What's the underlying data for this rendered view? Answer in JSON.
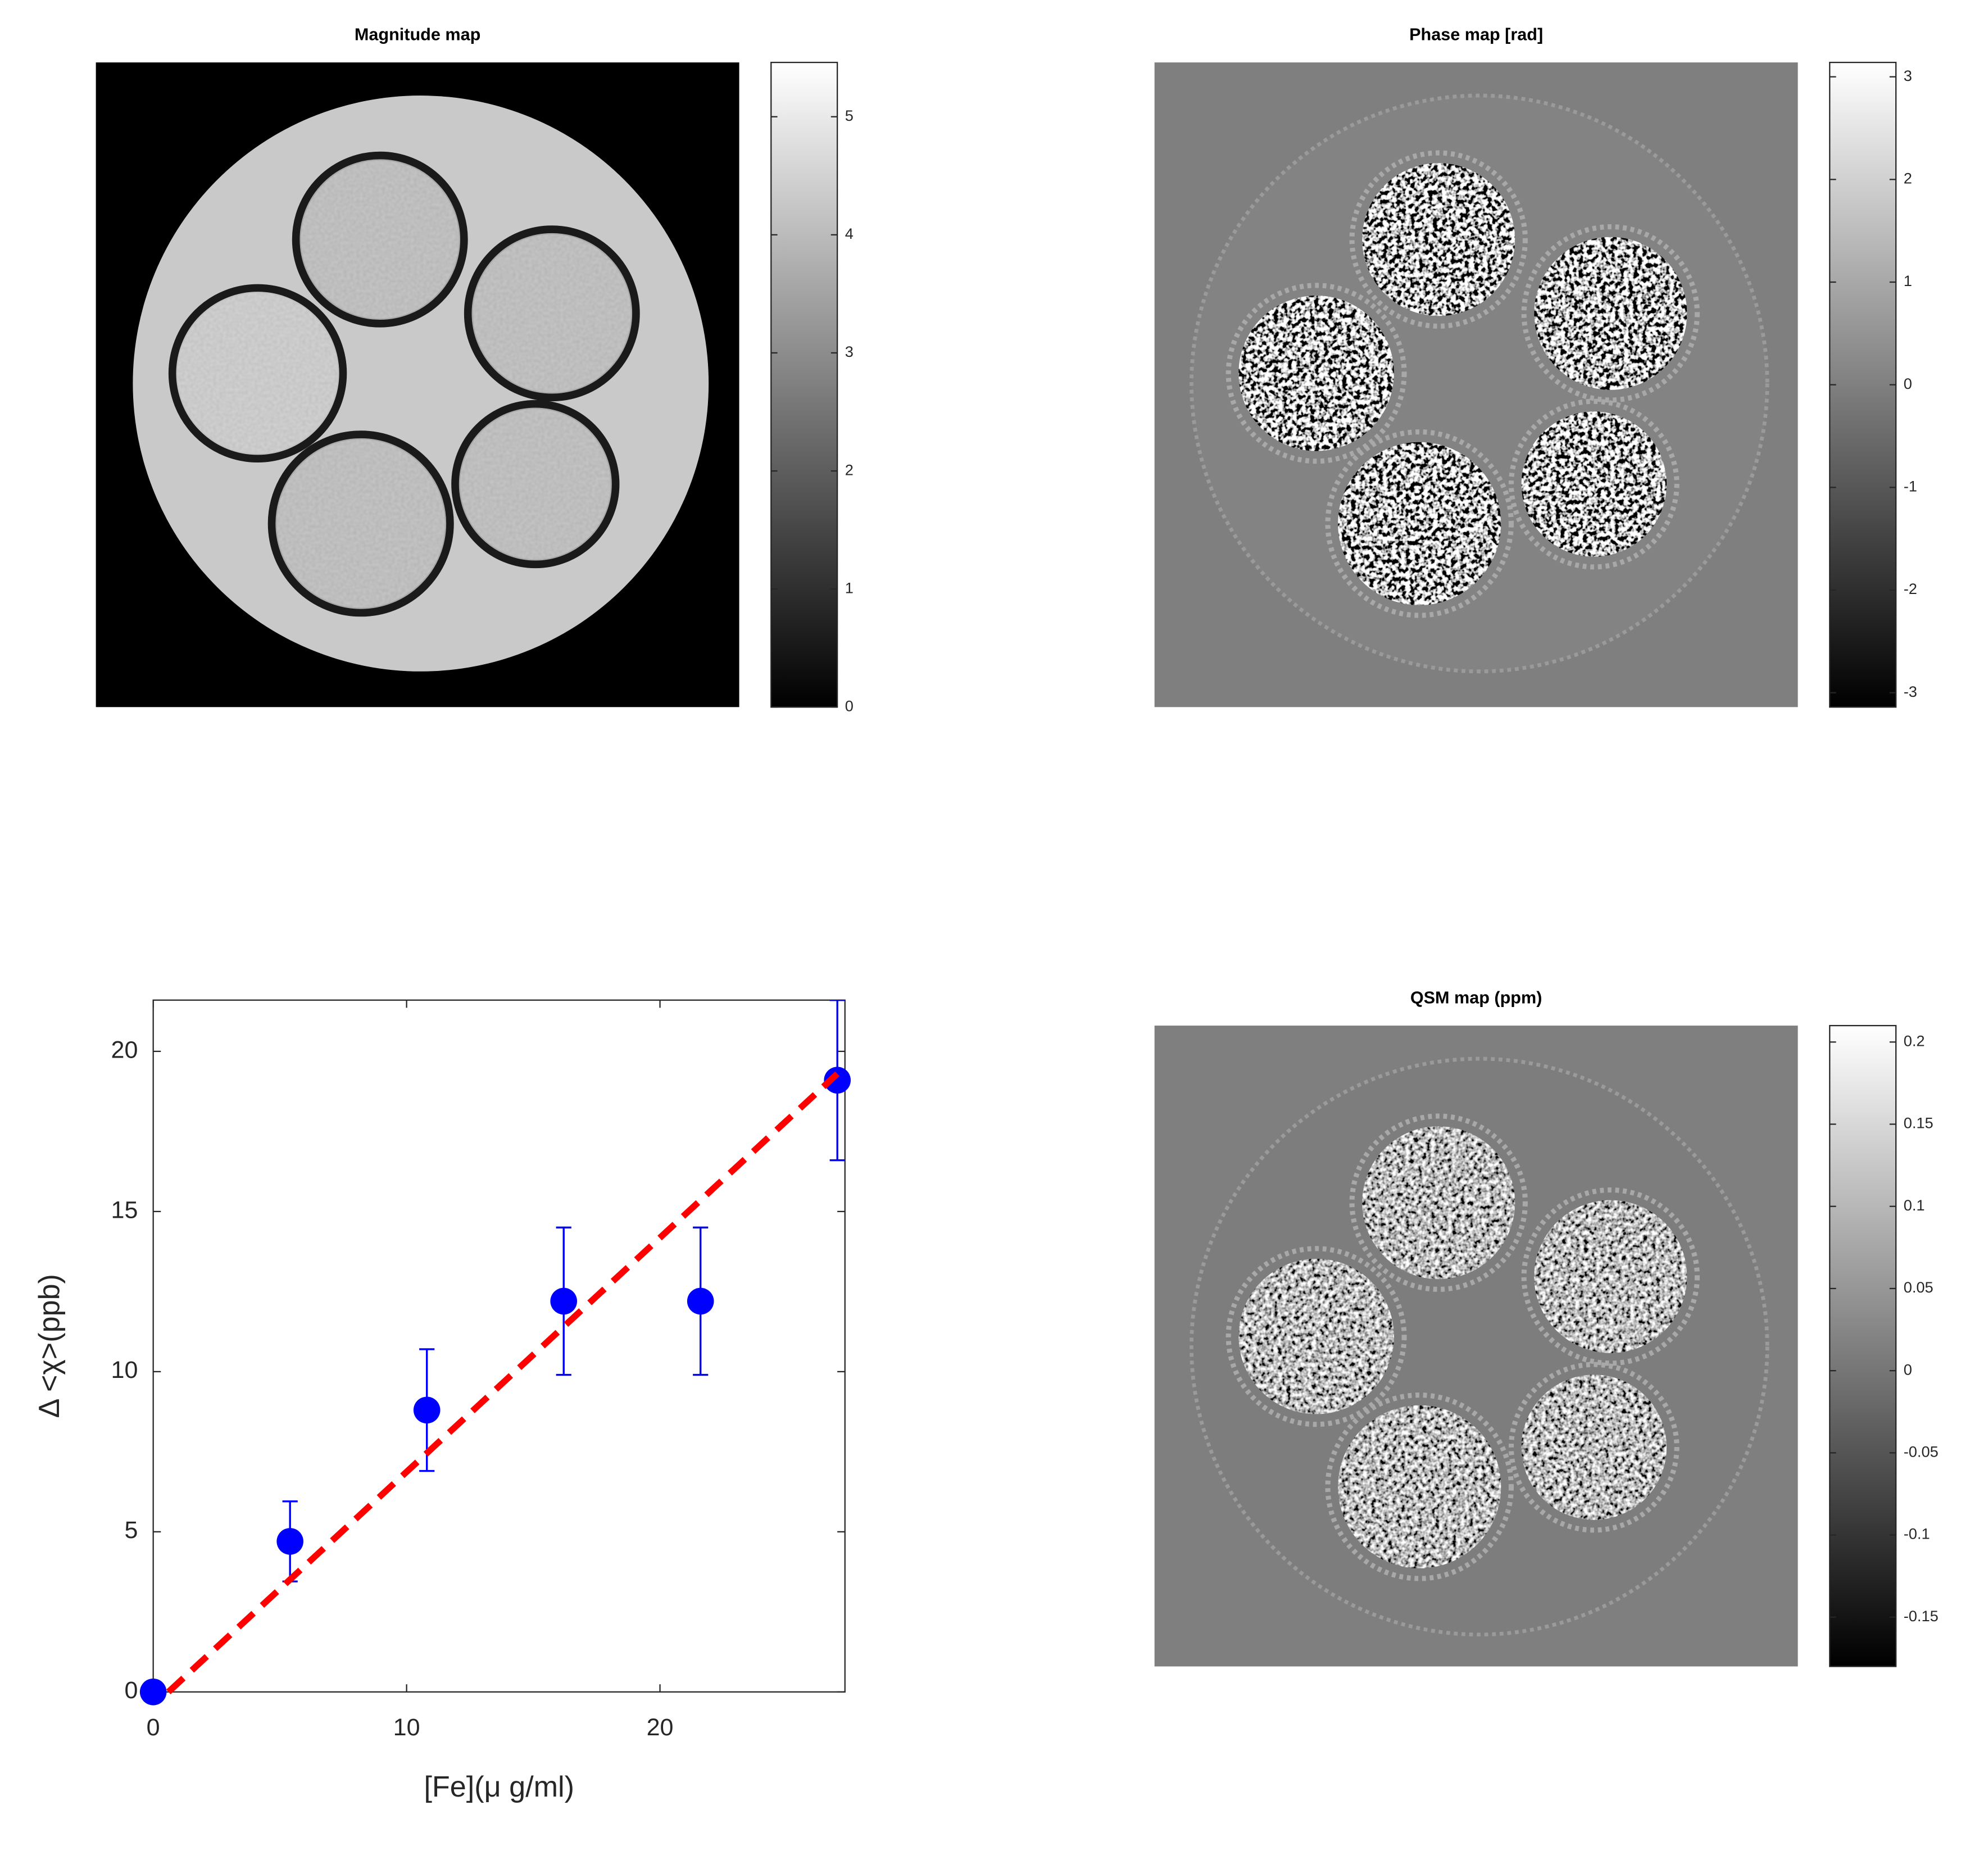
{
  "chart_data": [
    {
      "type": "image",
      "title": "Magnitude map",
      "colormap": "gray",
      "ylim": [
        0,
        5.46
      ],
      "yticks": [
        0,
        1,
        2,
        3,
        4,
        5
      ]
    },
    {
      "type": "image",
      "title": "Phase map [rad]",
      "colormap": "gray",
      "ylim": [
        -3.14,
        3.14
      ],
      "yticks": [
        -3,
        -2,
        -1,
        0,
        1,
        2,
        3
      ]
    },
    {
      "type": "scatter",
      "xlabel": "[Fe](μ g/ml)",
      "ylabel": "Δ <χ>(ppb)",
      "xlim": [
        0,
        27.3
      ],
      "xticks": [
        0,
        10,
        20
      ],
      "ylim": [
        0,
        21.6
      ],
      "yticks": [
        0,
        5,
        10,
        15,
        20
      ],
      "box": true,
      "series": [
        {
          "color": "#0000ff",
          "style": "markers",
          "x": [
            0,
            5.4,
            10.8,
            16.2,
            21.6,
            27
          ],
          "values": [
            0,
            4.7,
            8.8,
            12.2,
            12.2,
            19.1
          ],
          "errors": [
            0,
            1.25,
            1.9,
            2.3,
            2.3,
            2.5
          ]
        },
        {
          "color": "#ff0000",
          "style": "dashed",
          "x": [
            0.6,
            27
          ],
          "values": [
            0,
            19.3
          ]
        }
      ]
    },
    {
      "type": "image",
      "title": "QSM map (ppm)",
      "colormap": "gray",
      "ylim": [
        -0.18,
        0.21
      ],
      "yticks": [
        -0.15,
        -0.1,
        -0.05,
        0,
        0.05,
        0.1,
        0.15,
        0.2
      ]
    }
  ]
}
